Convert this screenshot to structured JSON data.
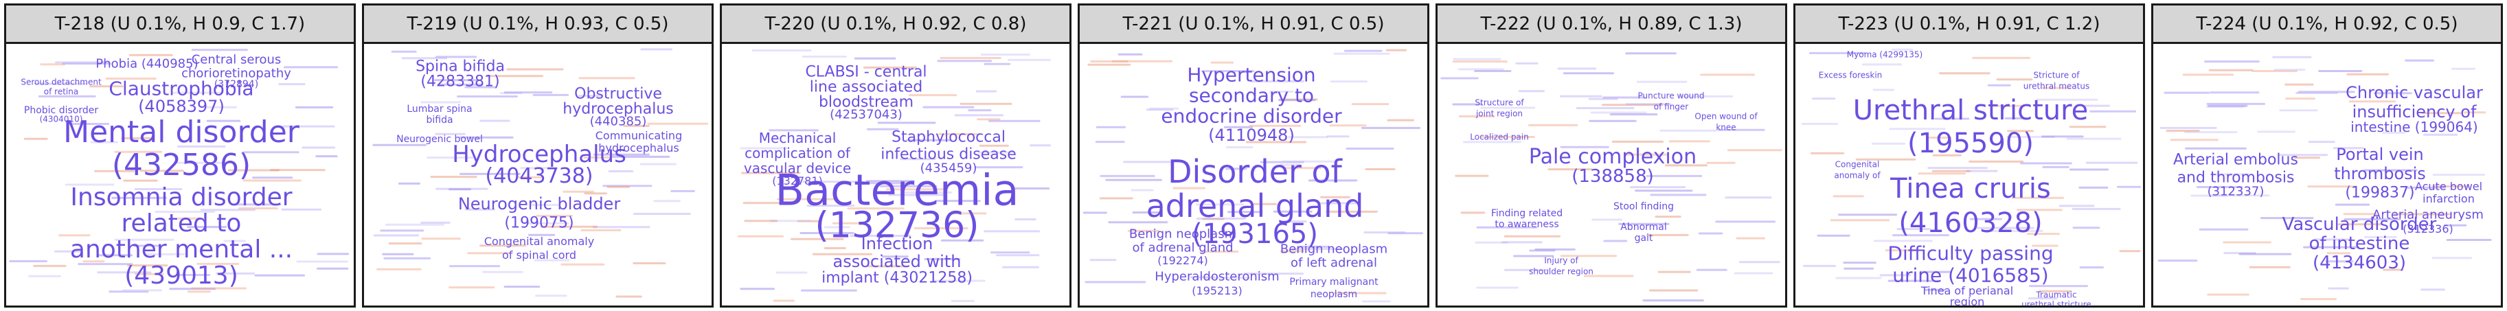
{
  "panels": [
    {
      "title": "T-218 (U 0.1%, H 0.9, C 1.7)",
      "words": [
        {
          "t": "Mental disorder",
          "c": "#6a4fe0",
          "s": 44
        },
        {
          "t": "(432586)",
          "c": "#6a4fe0",
          "s": 44
        },
        {
          "t": "Insomnia disorder",
          "c": "#6a4fe0",
          "s": 36
        },
        {
          "t": "related to",
          "c": "#6a4fe0",
          "s": 36
        },
        {
          "t": "another mental ...",
          "c": "#6a4fe0",
          "s": 36
        },
        {
          "t": "(439013)",
          "c": "#6a4fe0",
          "s": 36
        },
        {
          "t": "Claustrophobia",
          "c": "#6a4fe0",
          "s": 28
        },
        {
          "t": "(4058397)",
          "c": "#6a4fe0",
          "s": 24
        },
        {
          "t": "Phobia (440985)",
          "c": "#6a4fe0",
          "s": 18
        },
        {
          "t": "Central serous",
          "c": "#6a4fe0",
          "s": 18
        },
        {
          "t": "chorioretinopathy",
          "c": "#6a4fe0",
          "s": 18
        },
        {
          "t": "(372894)",
          "c": "#6a4fe0",
          "s": 14
        },
        {
          "t": "Serous detachment",
          "c": "#6a4fe0",
          "s": 12
        },
        {
          "t": "of retina",
          "c": "#6a4fe0",
          "s": 12
        },
        {
          "t": "Phobic disorder",
          "c": "#6a4fe0",
          "s": 14
        },
        {
          "t": "(4304010)",
          "c": "#6a4fe0",
          "s": 12
        }
      ]
    },
    {
      "title": "T-219 (U 0.1%, H 0.93, C 0.5)",
      "words": [
        {
          "t": "Hydrocephalus",
          "c": "#6a4fe0",
          "s": 34
        },
        {
          "t": "(4043738)",
          "c": "#6a4fe0",
          "s": 30
        },
        {
          "t": "Obstructive",
          "c": "#6a4fe0",
          "s": 22
        },
        {
          "t": "hydrocephalus",
          "c": "#6a4fe0",
          "s": 22
        },
        {
          "t": "(440385)",
          "c": "#6a4fe0",
          "s": 18
        },
        {
          "t": "Spina bifida",
          "c": "#6a4fe0",
          "s": 22
        },
        {
          "t": "(4283381)",
          "c": "#6a4fe0",
          "s": 22
        },
        {
          "t": "Neurogenic bladder",
          "c": "#6a4fe0",
          "s": 24
        },
        {
          "t": "(199075)",
          "c": "#6a4fe0",
          "s": 22
        },
        {
          "t": "Congenital anomaly",
          "c": "#6a4fe0",
          "s": 16
        },
        {
          "t": "of spinal cord",
          "c": "#6a4fe0",
          "s": 16
        },
        {
          "t": "Communicating",
          "c": "#6a4fe0",
          "s": 16
        },
        {
          "t": "hydrocephalus",
          "c": "#6a4fe0",
          "s": 16
        },
        {
          "t": "Lumbar spina",
          "c": "#6a4fe0",
          "s": 14
        },
        {
          "t": "bifida",
          "c": "#6a4fe0",
          "s": 14
        },
        {
          "t": "Neurogenic bowel",
          "c": "#6a4fe0",
          "s": 14
        }
      ]
    },
    {
      "title": "T-220 (U 0.1%, H 0.92, C 0.8)",
      "words": [
        {
          "t": "Bacteremia",
          "c": "#6a4fe0",
          "s": 62
        },
        {
          "t": "(132736)",
          "c": "#6a4fe0",
          "s": 52
        },
        {
          "t": "Infection",
          "c": "#6a4fe0",
          "s": 24
        },
        {
          "t": "associated with",
          "c": "#6a4fe0",
          "s": 24
        },
        {
          "t": "implant (43021258)",
          "c": "#6a4fe0",
          "s": 22
        },
        {
          "t": "CLABSI - central",
          "c": "#6a4fe0",
          "s": 22
        },
        {
          "t": "line associated",
          "c": "#6a4fe0",
          "s": 22
        },
        {
          "t": "bloodstream",
          "c": "#6a4fe0",
          "s": 22
        },
        {
          "t": "(42537043)",
          "c": "#6a4fe0",
          "s": 18
        },
        {
          "t": "Mechanical",
          "c": "#6a4fe0",
          "s": 20
        },
        {
          "t": "complication of",
          "c": "#6a4fe0",
          "s": 20
        },
        {
          "t": "vascular device",
          "c": "#6a4fe0",
          "s": 20
        },
        {
          "t": "(132781)",
          "c": "#6a4fe0",
          "s": 16
        },
        {
          "t": "Staphylococcal",
          "c": "#6a4fe0",
          "s": 22
        },
        {
          "t": "infectious disease",
          "c": "#6a4fe0",
          "s": 22
        },
        {
          "t": "(435459)",
          "c": "#6a4fe0",
          "s": 18
        }
      ]
    },
    {
      "title": "T-221 (U 0.1%, H 0.91, C 0.5)",
      "words": [
        {
          "t": "Disorder of",
          "c": "#6a4fe0",
          "s": 46
        },
        {
          "t": "adrenal gland",
          "c": "#6a4fe0",
          "s": 46
        },
        {
          "t": "(193165)",
          "c": "#6a4fe0",
          "s": 40
        },
        {
          "t": "Hypertension",
          "c": "#6a4fe0",
          "s": 28
        },
        {
          "t": "secondary to",
          "c": "#6a4fe0",
          "s": 28
        },
        {
          "t": "endocrine disorder",
          "c": "#6a4fe0",
          "s": 28
        },
        {
          "t": "(4110948)",
          "c": "#6a4fe0",
          "s": 24
        },
        {
          "t": "Benign neoplasm",
          "c": "#6a4fe0",
          "s": 18
        },
        {
          "t": "of adrenal gland",
          "c": "#6a4fe0",
          "s": 18
        },
        {
          "t": "(192274)",
          "c": "#6a4fe0",
          "s": 16
        },
        {
          "t": "Benign neoplasm",
          "c": "#6a4fe0",
          "s": 18
        },
        {
          "t": "of left adrenal",
          "c": "#6a4fe0",
          "s": 18
        },
        {
          "t": "Hyperaldosteronism",
          "c": "#6a4fe0",
          "s": 18
        },
        {
          "t": "(195213)",
          "c": "#6a4fe0",
          "s": 16
        },
        {
          "t": "Primary malignant",
          "c": "#6a4fe0",
          "s": 14
        },
        {
          "t": "neoplasm",
          "c": "#6a4fe0",
          "s": 14
        }
      ]
    },
    {
      "title": "T-222 (U 0.1%, H 0.89, C 1.3)",
      "words": [
        {
          "t": "Pale complexion",
          "c": "#6a4fe0",
          "s": 30
        },
        {
          "t": "(138858)",
          "c": "#6a4fe0",
          "s": 26
        },
        {
          "t": "Stool finding",
          "c": "#6a4fe0",
          "s": 14
        },
        {
          "t": "Finding related",
          "c": "#6a4fe0",
          "s": 14
        },
        {
          "t": "to awareness",
          "c": "#6a4fe0",
          "s": 14
        },
        {
          "t": "Abnormal",
          "c": "#6a4fe0",
          "s": 14
        },
        {
          "t": "gait",
          "c": "#6a4fe0",
          "s": 14
        },
        {
          "t": "Structure of",
          "c": "#6a4fe0",
          "s": 12
        },
        {
          "t": "joint region",
          "c": "#6a4fe0",
          "s": 12
        },
        {
          "t": "Localized pain",
          "c": "#6a4fe0",
          "s": 12
        },
        {
          "t": "Puncture wound",
          "c": "#6a4fe0",
          "s": 12
        },
        {
          "t": "of finger",
          "c": "#6a4fe0",
          "s": 12
        },
        {
          "t": "Open wound of",
          "c": "#6a4fe0",
          "s": 12
        },
        {
          "t": "knee",
          "c": "#6a4fe0",
          "s": 12
        },
        {
          "t": "Injury of",
          "c": "#6a4fe0",
          "s": 12
        },
        {
          "t": "shoulder region",
          "c": "#6a4fe0",
          "s": 12
        }
      ]
    },
    {
      "title": "T-223 (U 0.1%, H 0.91, C 1.2)",
      "words": [
        {
          "t": "Urethral stricture",
          "c": "#6a4fe0",
          "s": 40
        },
        {
          "t": "(195590)",
          "c": "#6a4fe0",
          "s": 40
        },
        {
          "t": "Tinea cruris",
          "c": "#6a4fe0",
          "s": 40
        },
        {
          "t": "(4160328)",
          "c": "#6a4fe0",
          "s": 40
        },
        {
          "t": "Difficulty passing",
          "c": "#6a4fe0",
          "s": 28
        },
        {
          "t": "urine (4016585)",
          "c": "#6a4fe0",
          "s": 28
        },
        {
          "t": "Tinea of perianal",
          "c": "#6a4fe0",
          "s": 16
        },
        {
          "t": "region",
          "c": "#6a4fe0",
          "s": 16
        },
        {
          "t": "Myoma (4299135)",
          "c": "#6a4fe0",
          "s": 12
        },
        {
          "t": "Excess foreskin",
          "c": "#6a4fe0",
          "s": 12
        },
        {
          "t": "Stricture of",
          "c": "#6a4fe0",
          "s": 12
        },
        {
          "t": "urethral meatus",
          "c": "#6a4fe0",
          "s": 12
        },
        {
          "t": "Congenital",
          "c": "#6a4fe0",
          "s": 12
        },
        {
          "t": "anomaly of",
          "c": "#6a4fe0",
          "s": 12
        },
        {
          "t": "Traumatic",
          "c": "#6a4fe0",
          "s": 12
        },
        {
          "t": "urethral stricture",
          "c": "#6a4fe0",
          "s": 12
        }
      ]
    },
    {
      "title": "T-224 (U 0.1%, H 0.92, C 0.5)",
      "words": [
        {
          "t": "Chronic vascular",
          "c": "#6a4fe0",
          "s": 24
        },
        {
          "t": "insufficiency of",
          "c": "#6a4fe0",
          "s": 24
        },
        {
          "t": "intestine (199064)",
          "c": "#6a4fe0",
          "s": 20
        },
        {
          "t": "Arterial embolus",
          "c": "#6a4fe0",
          "s": 22
        },
        {
          "t": "and thrombosis",
          "c": "#6a4fe0",
          "s": 22
        },
        {
          "t": "(312337)",
          "c": "#6a4fe0",
          "s": 18
        },
        {
          "t": "Portal vein",
          "c": "#6a4fe0",
          "s": 24
        },
        {
          "t": "thrombosis",
          "c": "#6a4fe0",
          "s": 24
        },
        {
          "t": "(199837)",
          "c": "#6a4fe0",
          "s": 22
        },
        {
          "t": "Vascular disorder",
          "c": "#6a4fe0",
          "s": 26
        },
        {
          "t": "of intestine",
          "c": "#6a4fe0",
          "s": 26
        },
        {
          "t": "(4134603)",
          "c": "#6a4fe0",
          "s": 26
        },
        {
          "t": "Arterial aneurysm",
          "c": "#6a4fe0",
          "s": 18
        },
        {
          "t": "(312336)",
          "c": "#6a4fe0",
          "s": 16
        },
        {
          "t": "Acute bowel",
          "c": "#6a4fe0",
          "s": 16
        },
        {
          "t": "infarction",
          "c": "#6a4fe0",
          "s": 16
        }
      ]
    }
  ]
}
